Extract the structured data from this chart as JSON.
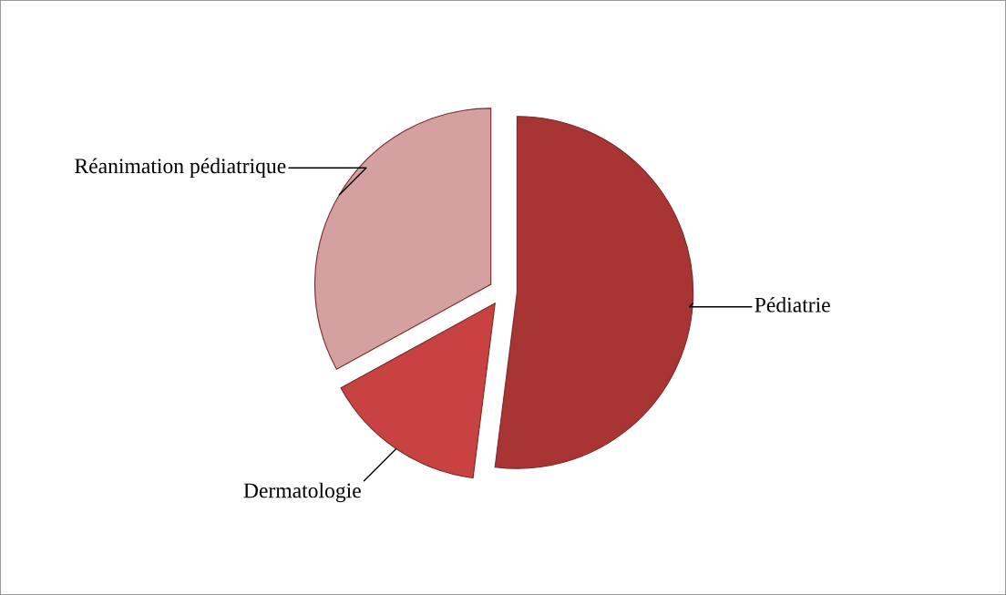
{
  "chart_data": {
    "type": "pie",
    "categories": [
      "Pédiatrie",
      "Dermatologie",
      "Réanimation pédiatrique"
    ],
    "values": [
      52,
      15,
      33
    ],
    "colors": [
      "#a83434",
      "#c94242",
      "#d4a0a0"
    ],
    "legend": false
  }
}
